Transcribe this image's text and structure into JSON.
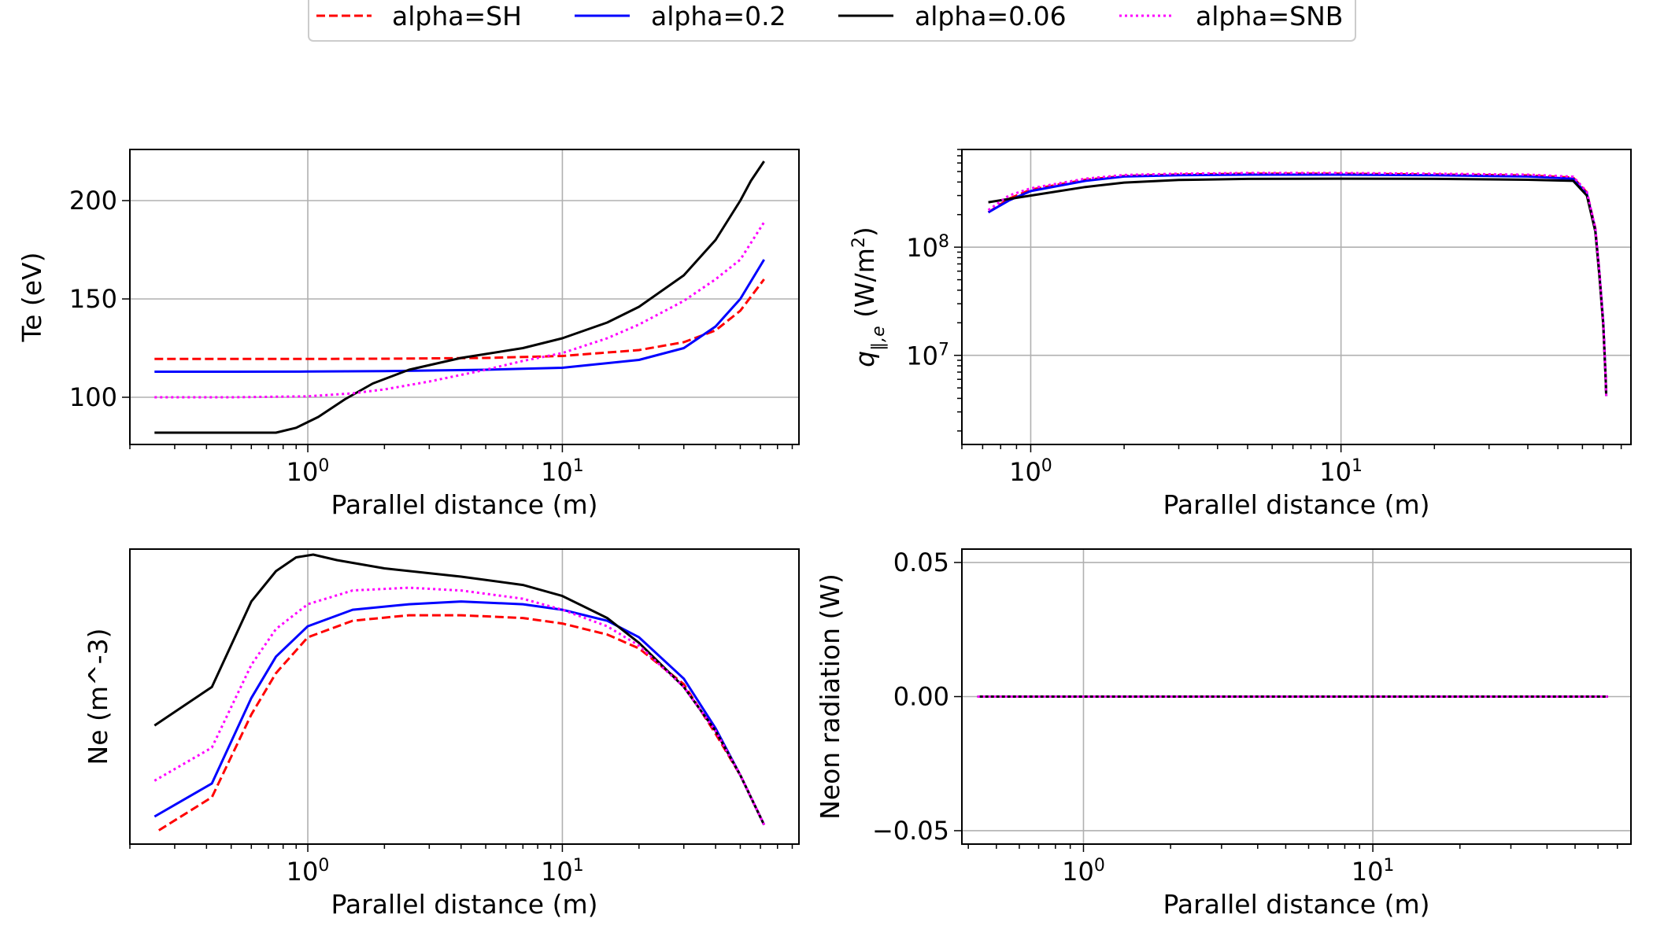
{
  "legend": {
    "location": "top-center",
    "entries": [
      {
        "label": "alpha=SH",
        "color": "#ff0000",
        "dash": "dashed"
      },
      {
        "label": "alpha=0.2",
        "color": "#0000ff",
        "dash": "solid"
      },
      {
        "label": "alpha=0.06",
        "color": "#000000",
        "dash": "solid"
      },
      {
        "label": "alpha=SNB",
        "color": "#ff00ff",
        "dash": "dotted"
      }
    ]
  },
  "chart_data": [
    {
      "id": "te",
      "type": "line",
      "xlabel": "Parallel distance (m)",
      "ylabel": "Te (eV)",
      "xscale": "log",
      "yscale": "linear",
      "xlim": [
        0.2,
        85
      ],
      "ylim": [
        76,
        226
      ],
      "xticks": [
        {
          "value": 1,
          "label": "10^0"
        },
        {
          "value": 10,
          "label": "10^1"
        }
      ],
      "yticks": [
        {
          "value": 100,
          "label": "100"
        },
        {
          "value": 150,
          "label": "150"
        },
        {
          "value": 200,
          "label": "200"
        }
      ],
      "grid": true,
      "series": [
        {
          "name": "alpha=SH",
          "x": [
            0.25,
            0.5,
            1,
            2,
            5,
            10,
            20,
            30,
            40,
            50,
            62
          ],
          "y": [
            119.5,
            119.5,
            119.5,
            119.6,
            120,
            121,
            124,
            128,
            134,
            144,
            160
          ]
        },
        {
          "name": "alpha=0.2",
          "x": [
            0.25,
            0.5,
            1,
            2,
            5,
            10,
            20,
            30,
            40,
            50,
            62
          ],
          "y": [
            113,
            113,
            113.1,
            113.3,
            114,
            115,
            119,
            125,
            136,
            150,
            170
          ]
        },
        {
          "name": "alpha=0.06",
          "x": [
            0.25,
            0.5,
            0.75,
            0.9,
            1.1,
            1.4,
            1.8,
            2.5,
            4,
            7,
            10,
            15,
            20,
            30,
            40,
            50,
            55,
            62
          ],
          "y": [
            82,
            82,
            82,
            84.5,
            90,
            99,
            107,
            114,
            120,
            125,
            130,
            138,
            146,
            162,
            180,
            200,
            210,
            220
          ]
        },
        {
          "name": "alpha=SNB",
          "x": [
            0.25,
            0.5,
            1,
            1.5,
            2,
            3,
            5,
            7,
            10,
            15,
            20,
            30,
            40,
            50,
            62
          ],
          "y": [
            100,
            100,
            100.5,
            102,
            104,
            108,
            114,
            118.5,
            122.5,
            130,
            137,
            149,
            160,
            170,
            189
          ]
        }
      ]
    },
    {
      "id": "q",
      "type": "line",
      "xlabel": "Parallel distance (m)",
      "ylabel": "q∥,e (W/m2)",
      "xscale": "log",
      "yscale": "log",
      "xlim": [
        0.6,
        86
      ],
      "ylim": [
        1500000,
        800000000
      ],
      "xticks": [
        {
          "value": 1,
          "label": "10^0"
        },
        {
          "value": 10,
          "label": "10^1"
        }
      ],
      "yticks": [
        {
          "value": 10000000,
          "label": "10^7"
        },
        {
          "value": 100000000,
          "label": "10^8"
        }
      ],
      "grid": true,
      "series": [
        {
          "name": "alpha=SH",
          "x": [
            0.73,
            0.85,
            1,
            1.5,
            2,
            3,
            5,
            10,
            20,
            40,
            56,
            62,
            66,
            68,
            70,
            71.3,
            71.6
          ],
          "y": [
            210000000,
            280000000,
            340000000,
            420000000,
            455000000,
            470000000,
            478000000,
            478000000,
            470000000,
            460000000,
            440000000,
            320000000,
            150000000,
            60000000,
            20000000,
            6000000,
            4200000
          ]
        },
        {
          "name": "alpha=0.2",
          "x": [
            0.73,
            0.85,
            1,
            1.5,
            2,
            3,
            5,
            10,
            20,
            40,
            56,
            62,
            66,
            68,
            70,
            71.3,
            71.6
          ],
          "y": [
            210000000,
            270000000,
            330000000,
            410000000,
            450000000,
            462000000,
            468000000,
            468000000,
            462000000,
            450000000,
            430000000,
            310000000,
            145000000,
            58000000,
            20000000,
            6000000,
            4200000
          ]
        },
        {
          "name": "alpha=0.06",
          "x": [
            0.73,
            1,
            1.5,
            2,
            3,
            5,
            10,
            20,
            40,
            56,
            62,
            66,
            68,
            70,
            71.3,
            71.6
          ],
          "y": [
            260000000,
            300000000,
            360000000,
            395000000,
            418000000,
            428000000,
            430000000,
            428000000,
            420000000,
            410000000,
            300000000,
            140000000,
            55000000,
            19000000,
            6000000,
            4200000
          ]
        },
        {
          "name": "alpha=SNB",
          "x": [
            0.73,
            0.85,
            1,
            1.5,
            2,
            3,
            5,
            10,
            20,
            40,
            56,
            62,
            66,
            68,
            70,
            71.3,
            71.6
          ],
          "y": [
            220000000,
            300000000,
            350000000,
            430000000,
            465000000,
            478000000,
            485000000,
            485000000,
            478000000,
            468000000,
            448000000,
            325000000,
            150000000,
            60000000,
            20000000,
            6000000,
            4200000
          ]
        }
      ]
    },
    {
      "id": "ne",
      "type": "line",
      "xlabel": "Parallel distance (m)",
      "ylabel": "Ne (m^-3)",
      "xscale": "log",
      "yscale": "linear",
      "xlim": [
        0.2,
        85
      ],
      "ylim": [
        -0.05,
        1.02
      ],
      "xticks": [
        {
          "value": 1,
          "label": "10^0"
        },
        {
          "value": 10,
          "label": "10^1"
        }
      ],
      "yticks": [],
      "grid": true,
      "series": [
        {
          "name": "alpha=SH",
          "x": [
            0.26,
            0.42,
            0.6,
            0.75,
            1,
            1.5,
            2.5,
            4,
            7,
            10,
            15,
            20,
            30,
            40,
            50,
            62
          ],
          "y": [
            0.0,
            0.12,
            0.42,
            0.57,
            0.7,
            0.76,
            0.78,
            0.78,
            0.77,
            0.75,
            0.71,
            0.66,
            0.53,
            0.35,
            0.2,
            0.02
          ]
        },
        {
          "name": "alpha=0.2",
          "x": [
            0.25,
            0.42,
            0.6,
            0.75,
            1,
            1.5,
            2.5,
            4,
            7,
            10,
            15,
            20,
            30,
            40,
            50,
            62
          ],
          "y": [
            0.05,
            0.17,
            0.48,
            0.63,
            0.74,
            0.8,
            0.82,
            0.83,
            0.82,
            0.8,
            0.76,
            0.7,
            0.55,
            0.37,
            0.2,
            0.02
          ]
        },
        {
          "name": "alpha=0.06",
          "x": [
            0.25,
            0.42,
            0.6,
            0.75,
            0.9,
            1.05,
            1.3,
            2,
            4,
            7,
            10,
            15,
            20,
            30,
            40,
            50,
            62
          ],
          "y": [
            0.38,
            0.52,
            0.83,
            0.94,
            0.99,
            1.0,
            0.98,
            0.95,
            0.92,
            0.89,
            0.85,
            0.77,
            0.68,
            0.52,
            0.36,
            0.2,
            0.02
          ]
        },
        {
          "name": "alpha=SNB",
          "x": [
            0.25,
            0.42,
            0.6,
            0.75,
            1,
            1.5,
            2.5,
            4,
            7,
            10,
            15,
            20,
            30,
            40,
            50,
            62
          ],
          "y": [
            0.18,
            0.3,
            0.6,
            0.73,
            0.82,
            0.87,
            0.88,
            0.87,
            0.84,
            0.8,
            0.74,
            0.67,
            0.52,
            0.36,
            0.2,
            0.02
          ]
        }
      ]
    },
    {
      "id": "neon",
      "type": "line",
      "xlabel": "Parallel distance (m)",
      "ylabel": "Neon radiation (W)",
      "xscale": "log",
      "yscale": "linear",
      "xlim": [
        0.38,
        78
      ],
      "ylim": [
        -0.055,
        0.055
      ],
      "xticks": [
        {
          "value": 1,
          "label": "10^0"
        },
        {
          "value": 10,
          "label": "10^1"
        }
      ],
      "yticks": [
        {
          "value": -0.05,
          "label": "−0.05"
        },
        {
          "value": 0.0,
          "label": "0.00"
        },
        {
          "value": 0.05,
          "label": "0.05"
        }
      ],
      "grid": true,
      "series": [
        {
          "name": "alpha=SH",
          "x": [
            0.43,
            65
          ],
          "y": [
            0,
            0
          ]
        },
        {
          "name": "alpha=0.2",
          "x": [
            0.43,
            65
          ],
          "y": [
            0,
            0
          ]
        },
        {
          "name": "alpha=0.06",
          "x": [
            0.43,
            65
          ],
          "y": [
            0,
            0
          ]
        },
        {
          "name": "alpha=SNB",
          "x": [
            0.43,
            65
          ],
          "y": [
            0,
            0
          ]
        }
      ]
    }
  ]
}
